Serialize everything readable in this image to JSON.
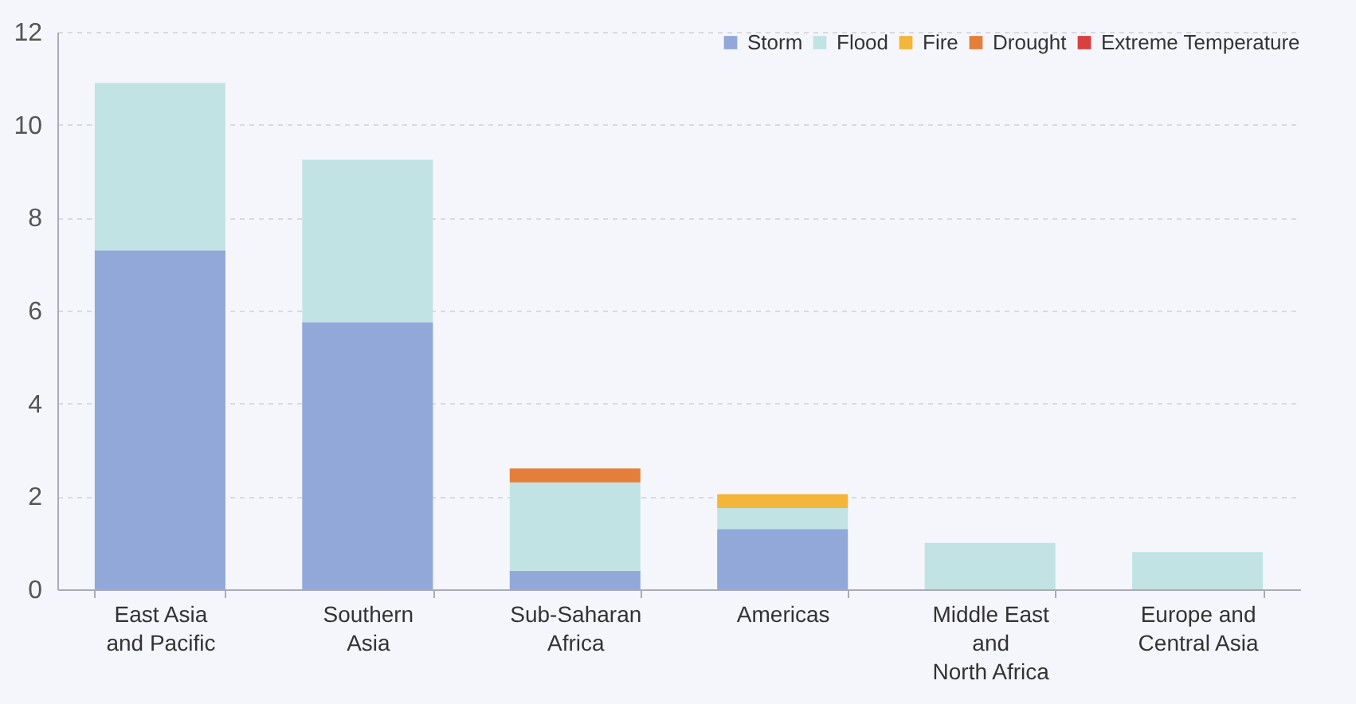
{
  "chart_data": {
    "type": "bar",
    "stacked": true,
    "categories": [
      "East Asia\nand Pacific",
      "Southern\nAsia",
      "Sub-Saharan\nAfrica",
      "Americas",
      "Middle East\nand\nNorth Africa",
      "Europe and\nCentral Asia"
    ],
    "series": [
      {
        "name": "Storm",
        "color": "#91a8d9",
        "values": [
          7.3,
          5.75,
          0.4,
          1.3,
          null,
          null
        ]
      },
      {
        "name": "Flood",
        "color": "#c2e3e3",
        "values": [
          3.6,
          3.5,
          1.9,
          0.45,
          1.0,
          0.8
        ]
      },
      {
        "name": "Fire",
        "color": "#f3b53a",
        "values": [
          null,
          null,
          null,
          0.3,
          null,
          null
        ]
      },
      {
        "name": "Drought",
        "color": "#e37f3a",
        "values": [
          null,
          null,
          0.3,
          null,
          null,
          null
        ]
      },
      {
        "name": "Extreme Temperature",
        "color": "#d94040",
        "values": [
          null,
          null,
          null,
          null,
          null,
          null
        ]
      }
    ],
    "ylim": [
      0,
      12
    ],
    "yticks": [
      0,
      2,
      4,
      6,
      8,
      10,
      12
    ],
    "grid": "y",
    "legend": "top right"
  }
}
